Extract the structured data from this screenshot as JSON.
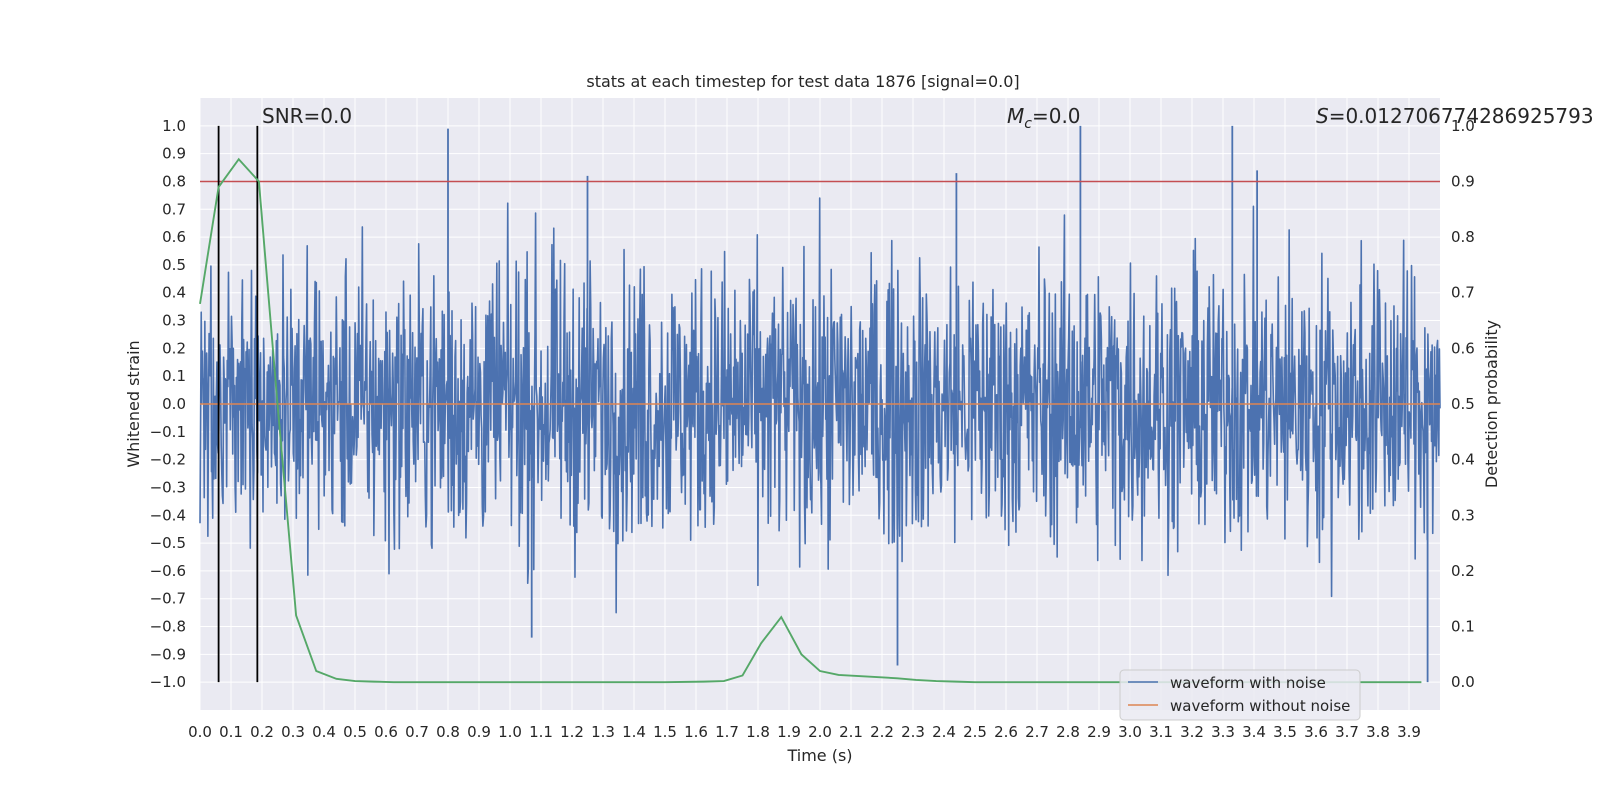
{
  "chart_data": {
    "type": "line",
    "title": "stats at each timestep for test data 1876 [signal=0.0]",
    "xlabel": "Time (s)",
    "ylabel": "Whitened strain",
    "y2label": "Detection probability",
    "xlim": [
      0.0,
      4.0
    ],
    "ylim": [
      -1.1,
      1.1
    ],
    "y2lim": [
      -0.05,
      1.05
    ],
    "xticks": [
      "0.0",
      "0.1",
      "0.2",
      "0.3",
      "0.4",
      "0.5",
      "0.6",
      "0.7",
      "0.8",
      "0.9",
      "1.0",
      "1.1",
      "1.2",
      "1.3",
      "1.4",
      "1.5",
      "1.6",
      "1.7",
      "1.8",
      "1.9",
      "2.0",
      "2.1",
      "2.2",
      "2.3",
      "2.4",
      "2.5",
      "2.6",
      "2.7",
      "2.8",
      "2.9",
      "3.0",
      "3.1",
      "3.2",
      "3.3",
      "3.4",
      "3.5",
      "3.6",
      "3.7",
      "3.8",
      "3.9"
    ],
    "yticks": [
      "1.0",
      "0.9",
      "0.8",
      "0.7",
      "0.6",
      "0.5",
      "0.4",
      "0.3",
      "0.2",
      "0.1",
      "0.0",
      "−0.1",
      "−0.2",
      "−0.3",
      "−0.4",
      "−0.5",
      "−0.6",
      "−0.7",
      "−0.8",
      "−0.9",
      "−1.0"
    ],
    "y2ticks": [
      "1.0",
      "0.9",
      "0.8",
      "0.7",
      "0.6",
      "0.5",
      "0.4",
      "0.3",
      "0.2",
      "0.1",
      "0.0"
    ],
    "annotations": {
      "snr": "SNR=0.0",
      "mc": "=0.0",
      "mc_symbol": "M",
      "mc_sub": "c",
      "s": "=0.012706774286925793",
      "s_symbol": "S"
    },
    "legend": {
      "position": "lower-right",
      "entries": [
        {
          "label": "waveform with noise",
          "color": "#4c72b0"
        },
        {
          "label": "waveform without noise",
          "color": "#dd8452"
        }
      ]
    },
    "series": [
      {
        "name": "waveform with noise",
        "color": "#4c72b0",
        "x_range": [
          0.0,
          4.0
        ],
        "envelope_peaks_upper": [
          {
            "x": 0.8,
            "y": 0.99
          },
          {
            "x": 1.25,
            "y": 0.82
          },
          {
            "x": 2.44,
            "y": 0.83
          },
          {
            "x": 2.84,
            "y": 1.0
          },
          {
            "x": 3.33,
            "y": 1.0
          },
          {
            "x": 3.41,
            "y": 0.84
          }
        ],
        "envelope_peaks_lower": [
          {
            "x": 1.07,
            "y": -0.84
          },
          {
            "x": 2.25,
            "y": -0.94
          },
          {
            "x": 3.96,
            "y": -1.0
          }
        ],
        "typical_amplitude": 0.6
      },
      {
        "name": "waveform without noise",
        "color": "#dd8452",
        "x": [
          0.0,
          4.0
        ],
        "y": [
          0.0,
          0.0
        ]
      },
      {
        "name": "detection probability",
        "color": "#55a868",
        "axis": "right",
        "x": [
          0.0,
          0.06,
          0.125,
          0.19,
          0.25,
          0.31,
          0.375,
          0.44,
          0.5,
          0.56,
          0.625,
          0.69,
          1.0,
          1.5,
          1.625,
          1.69,
          1.75,
          1.81,
          1.875,
          1.94,
          2.0,
          2.06,
          2.125,
          2.19,
          2.25,
          2.31,
          2.375,
          2.44,
          2.5,
          3.0,
          3.5,
          3.94
        ],
        "y": [
          0.68,
          0.89,
          0.94,
          0.9,
          0.5,
          0.12,
          0.02,
          0.006,
          0.002,
          0.001,
          0.0,
          0.0,
          0.0,
          0.0,
          0.001,
          0.002,
          0.012,
          0.07,
          0.117,
          0.05,
          0.02,
          0.013,
          0.011,
          0.009,
          0.007,
          0.004,
          0.002,
          0.001,
          0.0,
          0.0,
          0.0,
          0.0
        ]
      }
    ],
    "threshold": {
      "axis": "right",
      "y": 0.9,
      "color": "#c44e52"
    },
    "vertical_markers": {
      "x": [
        0.06,
        0.185
      ],
      "ylim": [
        -1.0,
        1.0
      ],
      "color": "#000000"
    }
  }
}
